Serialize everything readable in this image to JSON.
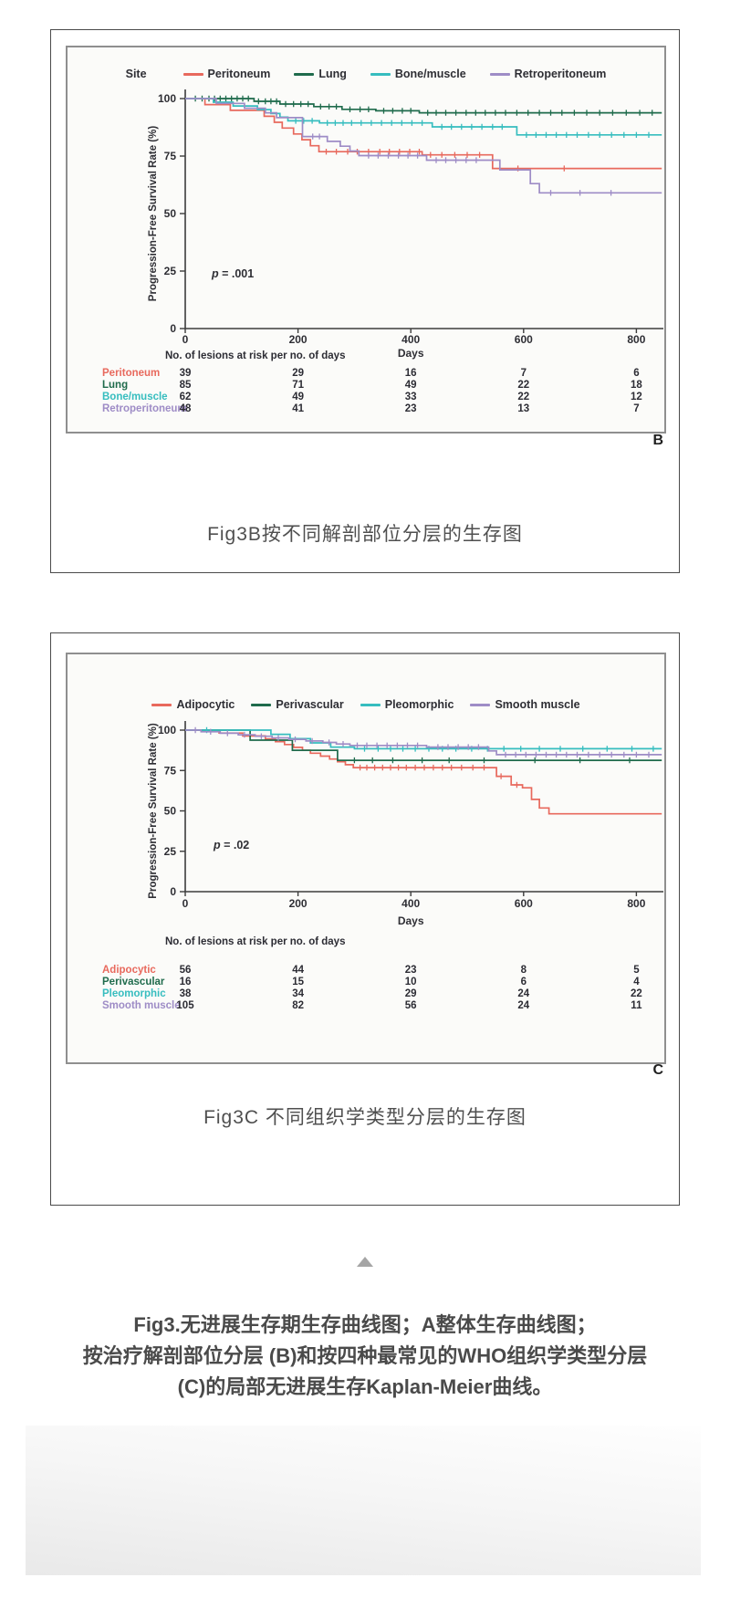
{
  "figures": {
    "b": {
      "panel_letter": "B",
      "caption": "Fig3B按不同解剖部位分层的生存图"
    },
    "c": {
      "panel_letter": "C",
      "caption": "Fig3C 不同组织学类型分层的生存图"
    }
  },
  "bottom_caption": {
    "line1": "Fig3.无进展生存期生存曲线图；A整体生存曲线图；",
    "line2": "按治疗解剖部位分层 (B)和按四种最常见的WHO组织学类型分层",
    "line3": "(C)的局部无进展生存Kaplan-Meier曲线。"
  },
  "colors": {
    "red": "#e8695d",
    "green": "#1f6b4c",
    "teal": "#36bdbf",
    "purple": "#9e8cc6",
    "axis_text": "#2e2e34",
    "caption_gray": "#4f4f4f",
    "triangle_gray": "#a5a5a5"
  },
  "chart_data": [
    {
      "type": "line",
      "subtype": "kaplan-meier-step",
      "panel_letter": "B",
      "legend_title": "Site",
      "legend_position": "top",
      "xlabel": "Days",
      "ylabel": "Progression-Free Survival Rate (%)",
      "x_ticks": [
        0,
        200,
        400,
        600,
        800
      ],
      "y_ticks": [
        100,
        75,
        50,
        25,
        0
      ],
      "xlim": [
        0,
        845
      ],
      "ylim": [
        0,
        100
      ],
      "p_value_label": "p = .001",
      "risk_table_header": "No. of lesions at risk per no. of days",
      "series": [
        {
          "name": "Peritoneum",
          "color": "#e8695d",
          "drops": [
            [
              35,
              97.4
            ],
            [
              80,
              94.9
            ],
            [
              140,
              92.3
            ],
            [
              158,
              89.7
            ],
            [
              172,
              87.2
            ],
            [
              192,
              84.6
            ],
            [
              207,
              82.1
            ],
            [
              222,
              79.5
            ],
            [
              237,
              76.9
            ],
            [
              420,
              75.5
            ],
            [
              545,
              69.6
            ]
          ],
          "end_day": 845,
          "censor_days": [
            250,
            268,
            288,
            305,
            325,
            345,
            362,
            380,
            398,
            415,
            435,
            455,
            478,
            500,
            522,
            590,
            672
          ],
          "at_risk": [
            39,
            29,
            16,
            7,
            6
          ]
        },
        {
          "name": "Lung",
          "color": "#1f6b4c",
          "drops": [
            [
              122,
              98.8
            ],
            [
              168,
              97.6
            ],
            [
              228,
              96.5
            ],
            [
              278,
              95.3
            ],
            [
              338,
              94.7
            ],
            [
              415,
              93.8
            ]
          ],
          "end_day": 845,
          "censor_days": [
            18,
            30,
            42,
            52,
            62,
            72,
            82,
            92,
            102,
            112,
            130,
            142,
            152,
            162,
            178,
            192,
            205,
            218,
            240,
            255,
            268,
            292,
            310,
            325,
            352,
            368,
            385,
            400,
            430,
            445,
            462,
            480,
            498,
            515,
            532,
            550,
            568,
            588,
            608,
            628,
            648,
            668,
            690,
            712,
            735,
            758,
            782,
            806,
            828
          ],
          "at_risk": [
            85,
            71,
            49,
            22,
            18
          ]
        },
        {
          "name": "Bone/muscle",
          "color": "#36bdbf",
          "drops": [
            [
              50,
              98.4
            ],
            [
              85,
              96.8
            ],
            [
              128,
              95.2
            ],
            [
              152,
              93.5
            ],
            [
              168,
              91.9
            ],
            [
              182,
              90.3
            ],
            [
              238,
              89.4
            ],
            [
              438,
              87.7
            ],
            [
              588,
              84.2
            ]
          ],
          "end_day": 845,
          "censor_days": [
            196,
            210,
            225,
            252,
            266,
            280,
            295,
            312,
            330,
            348,
            366,
            384,
            402,
            420,
            455,
            472,
            490,
            508,
            526,
            545,
            562,
            605,
            622,
            640,
            658,
            676,
            695,
            715,
            735,
            756,
            778,
            800,
            822
          ],
          "at_risk": [
            62,
            49,
            33,
            22,
            12
          ]
        },
        {
          "name": "Retroperitoneum",
          "color": "#9e8cc6",
          "drops": [
            [
              55,
              97.9
            ],
            [
              105,
              95.8
            ],
            [
              142,
              93.8
            ],
            [
              162,
              91.7
            ],
            [
              208,
              83.5
            ],
            [
              252,
              81.4
            ],
            [
              275,
              79.3
            ],
            [
              292,
              77.2
            ],
            [
              308,
              75.2
            ],
            [
              428,
              73.2
            ],
            [
              558,
              69.0
            ],
            [
              612,
              63.0
            ],
            [
              628,
              59.0
            ]
          ],
          "end_day": 845,
          "censor_days": [
            226,
            238,
            325,
            342,
            360,
            378,
            395,
            412,
            445,
            462,
            480,
            498,
            516,
            648,
            700,
            755
          ],
          "at_risk": [
            48,
            41,
            23,
            13,
            7
          ]
        }
      ]
    },
    {
      "type": "line",
      "subtype": "kaplan-meier-step",
      "panel_letter": "C",
      "legend_title": null,
      "legend_position": "top",
      "xlabel": "Days",
      "ylabel": "Progression-Free Survival Rate (%)",
      "x_ticks": [
        0,
        200,
        400,
        600,
        800
      ],
      "y_ticks": [
        100,
        75,
        50,
        25,
        0
      ],
      "xlim": [
        0,
        845
      ],
      "ylim": [
        0,
        100
      ],
      "p_value_label": "p = .02",
      "risk_table_header": "No. of lesions at risk per no. of days",
      "series": [
        {
          "name": "Adipocytic",
          "color": "#e8695d",
          "drops": [
            [
              60,
              98.2
            ],
            [
              102,
              96.4
            ],
            [
              142,
              94.6
            ],
            [
              160,
              92.9
            ],
            [
              176,
              91.1
            ],
            [
              192,
              89.3
            ],
            [
              208,
              87.5
            ],
            [
              222,
              85.7
            ],
            [
              240,
              83.9
            ],
            [
              256,
              82.1
            ],
            [
              270,
              80.4
            ],
            [
              284,
              78.6
            ],
            [
              298,
              76.8
            ],
            [
              552,
              71.4
            ],
            [
              578,
              66.1
            ],
            [
              598,
              64.3
            ],
            [
              614,
              57.1
            ],
            [
              628,
              51.8
            ],
            [
              645,
              48.2
            ]
          ],
          "end_day": 845,
          "censor_days": [
            310,
            322,
            336,
            350,
            364,
            378,
            392,
            408,
            424,
            440,
            456,
            472,
            490,
            510,
            530,
            560,
            588
          ],
          "at_risk": [
            56,
            44,
            23,
            8,
            5
          ]
        },
        {
          "name": "Perivascular",
          "color": "#1f6b4c",
          "drops": [
            [
              115,
              93.8
            ],
            [
              190,
              87.5
            ],
            [
              270,
              81.3
            ]
          ],
          "end_day": 845,
          "censor_days": [
            300,
            332,
            368,
            420,
            468,
            530,
            620,
            700,
            788
          ],
          "at_risk": [
            16,
            15,
            10,
            6,
            4
          ]
        },
        {
          "name": "Pleomorphic",
          "color": "#36bdbf",
          "drops": [
            [
              152,
              97.4
            ],
            [
              186,
              94.7
            ],
            [
              222,
              92.1
            ],
            [
              258,
              89.5
            ],
            [
              300,
              88.5
            ]
          ],
          "end_day": 845,
          "censor_days": [
            38,
            318,
            342,
            364,
            386,
            408,
            432,
            456,
            480,
            508,
            536,
            565,
            595,
            628,
            665,
            705,
            748,
            792,
            830
          ],
          "at_risk": [
            38,
            34,
            29,
            24,
            22
          ]
        },
        {
          "name": "Smooth muscle",
          "color": "#9e8cc6",
          "drops": [
            [
              28,
              99.0
            ],
            [
              62,
              98.1
            ],
            [
              94,
              97.1
            ],
            [
              124,
              96.2
            ],
            [
              154,
              95.2
            ],
            [
              184,
              94.3
            ],
            [
              214,
              93.3
            ],
            [
              244,
              92.4
            ],
            [
              268,
              91.4
            ],
            [
              292,
              90.5
            ],
            [
              428,
              89.5
            ],
            [
              538,
              87.1
            ],
            [
              552,
              84.8
            ]
          ],
          "end_day": 845,
          "censor_days": [
            18,
            45,
            75,
            105,
            135,
            165,
            195,
            225,
            255,
            280,
            305,
            322,
            340,
            358,
            376,
            394,
            412,
            448,
            466,
            484,
            502,
            520,
            568,
            586,
            604,
            622,
            640,
            658,
            676,
            695,
            715,
            735,
            756,
            778,
            800,
            822
          ],
          "at_risk": [
            105,
            82,
            56,
            24,
            11
          ]
        }
      ]
    }
  ]
}
